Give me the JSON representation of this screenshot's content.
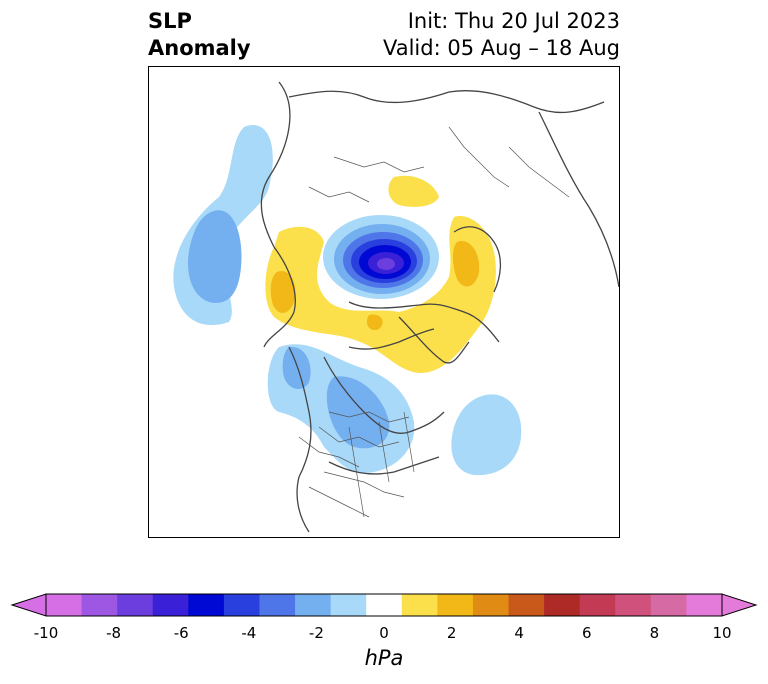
{
  "title": {
    "left_line1": "SLP",
    "left_line2": "Anomaly",
    "init": "Init: Thu 20 Jul 2023",
    "valid": "Valid: 05 Aug – 18 Aug"
  },
  "colorbar": {
    "units": "hPa",
    "levels": [
      -10,
      -9,
      -8,
      -7,
      -6,
      -5,
      -4,
      -3,
      -2,
      -1,
      1,
      2,
      3,
      4,
      5,
      6,
      7,
      8,
      9,
      10
    ],
    "tick_labels": [
      "-10",
      "-8",
      "-6",
      "-4",
      "-2",
      "0",
      "2",
      "4",
      "6",
      "8",
      "10"
    ],
    "colors": [
      "#d66ee6",
      "#9d57e3",
      "#6c3ede",
      "#3a20d6",
      "#0009d3",
      "#2a40de",
      "#4f76e8",
      "#74aff0",
      "#a9d9f8",
      "#ffffff",
      "#fbe04c",
      "#f1b817",
      "#e08c14",
      "#c9591a",
      "#ad2a26",
      "#c33a54",
      "#d0527c",
      "#d66aa5",
      "#e47ad9"
    ],
    "extend": "both"
  },
  "map": {
    "projection": "north-polar-stereographic",
    "anomaly_features": [
      {
        "name": "negative-anomaly-arctic-center",
        "sign": "negative",
        "min_hpa": -9
      },
      {
        "name": "negative-anomaly-west-siberia-pacific",
        "sign": "negative",
        "min_hpa": -3
      },
      {
        "name": "negative-anomaly-canada-us",
        "sign": "negative",
        "min_hpa": -3
      },
      {
        "name": "negative-anomaly-north-atlantic",
        "sign": "negative",
        "min_hpa": -2
      },
      {
        "name": "positive-anomaly-ring",
        "sign": "positive",
        "max_hpa": 2
      }
    ]
  }
}
